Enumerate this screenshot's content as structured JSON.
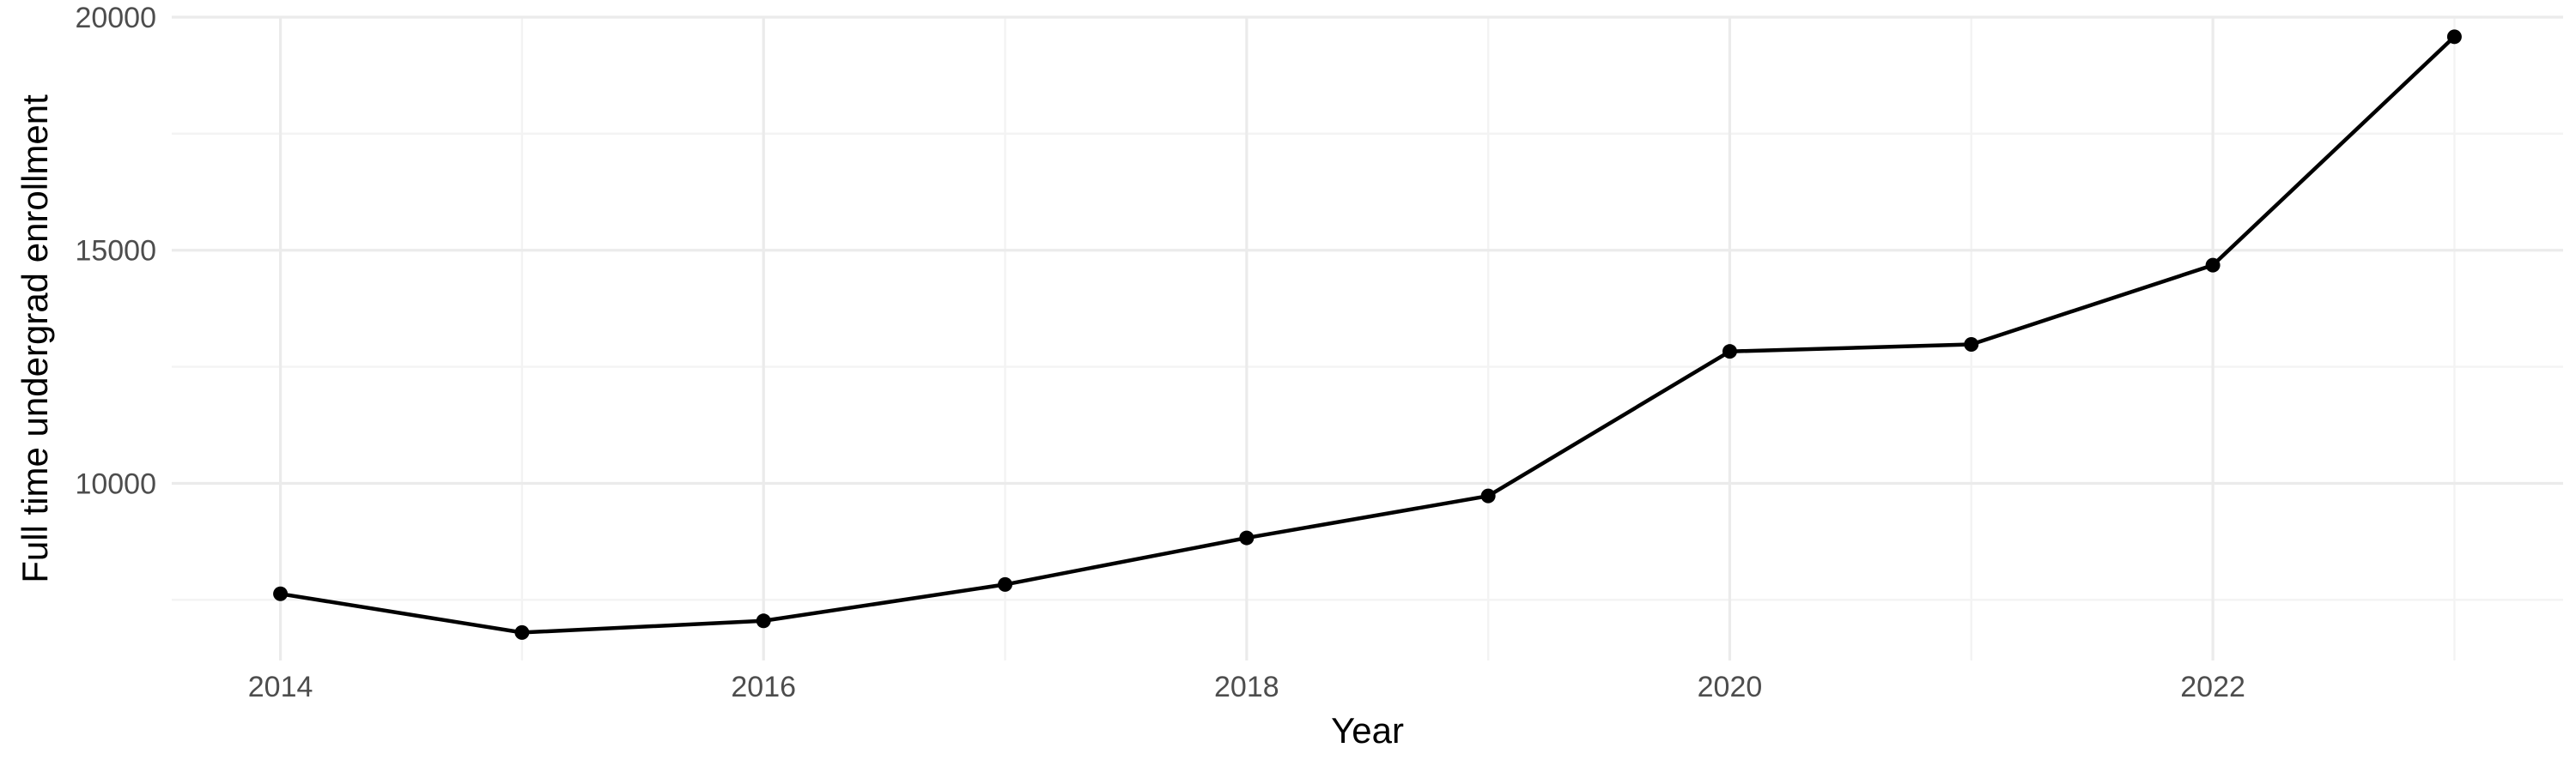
{
  "chart_data": {
    "type": "line",
    "title": "",
    "xlabel": "Year",
    "ylabel": "Full time undergrad enrollment",
    "x": [
      2014,
      2015,
      2016,
      2017,
      2018,
      2019,
      2020,
      2021,
      2022,
      2023
    ],
    "series": [
      {
        "values": [
          7630,
          6800,
          7050,
          7830,
          8830,
          9730,
          12830,
          12980,
          14680,
          19580
        ]
      }
    ],
    "x_ticks": [
      2014,
      2016,
      2018,
      2020,
      2022
    ],
    "x_tick_labels": [
      "2014",
      "2016",
      "2018",
      "2020",
      "2022"
    ],
    "y_ticks": [
      10000,
      15000,
      20000
    ],
    "y_tick_labels": [
      "10000",
      "15000",
      "20000"
    ],
    "xlim": [
      2013.55,
      2023.45
    ],
    "ylim": [
      6200,
      20000
    ],
    "grid": true,
    "legend": "none",
    "colors": {
      "series": "#000000",
      "grid_major": "#ebebeb",
      "grid_minor": "#f3f3f3",
      "tick_text": "#4d4d4d"
    }
  }
}
